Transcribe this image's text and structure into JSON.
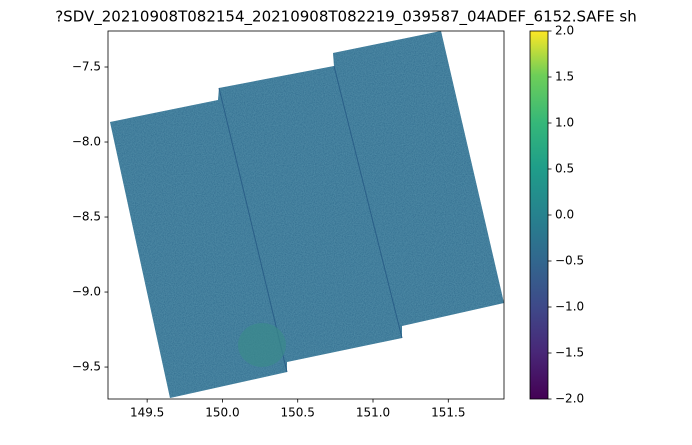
{
  "chart_data": {
    "type": "image",
    "title": "?SDV_20210908T082154_20210908T082219_039587_04ADEF_6152.SAFE sh",
    "xlim": [
      149.24,
      151.87
    ],
    "xticks": [
      149.5,
      {
        "value": 150,
        "label": "150.0"
      },
      150.5,
      {
        "value": 151,
        "label": "151.0"
      },
      151.5
    ],
    "ylim": [
      -9.713,
      -7.26
    ],
    "yticks": [
      {
        "value": -7.5,
        "label": "−7.5"
      },
      {
        "value": -8,
        "label": "−8.0"
      },
      {
        "value": -8.5,
        "label": "−8.5"
      },
      {
        "value": -9,
        "label": "−9.0"
      },
      {
        "value": -9.5,
        "label": "−9.5"
      }
    ],
    "colorbar": {
      "colormap": "viridis",
      "lim": [
        -2,
        2
      ],
      "ticks": [
        {
          "value": -2,
          "label": "−2.0"
        },
        {
          "value": -1.5,
          "label": "−1.5"
        },
        {
          "value": -1,
          "label": "−1.0"
        },
        {
          "value": -0.5,
          "label": "−0.5"
        },
        {
          "value": 0,
          "label": "0.0"
        },
        {
          "value": 0.5,
          "label": "0.5"
        },
        {
          "value": 1,
          "label": "1.0"
        },
        {
          "value": 1.5,
          "label": "1.5"
        },
        {
          "value": 2,
          "label": "2.0"
        }
      ]
    }
  }
}
